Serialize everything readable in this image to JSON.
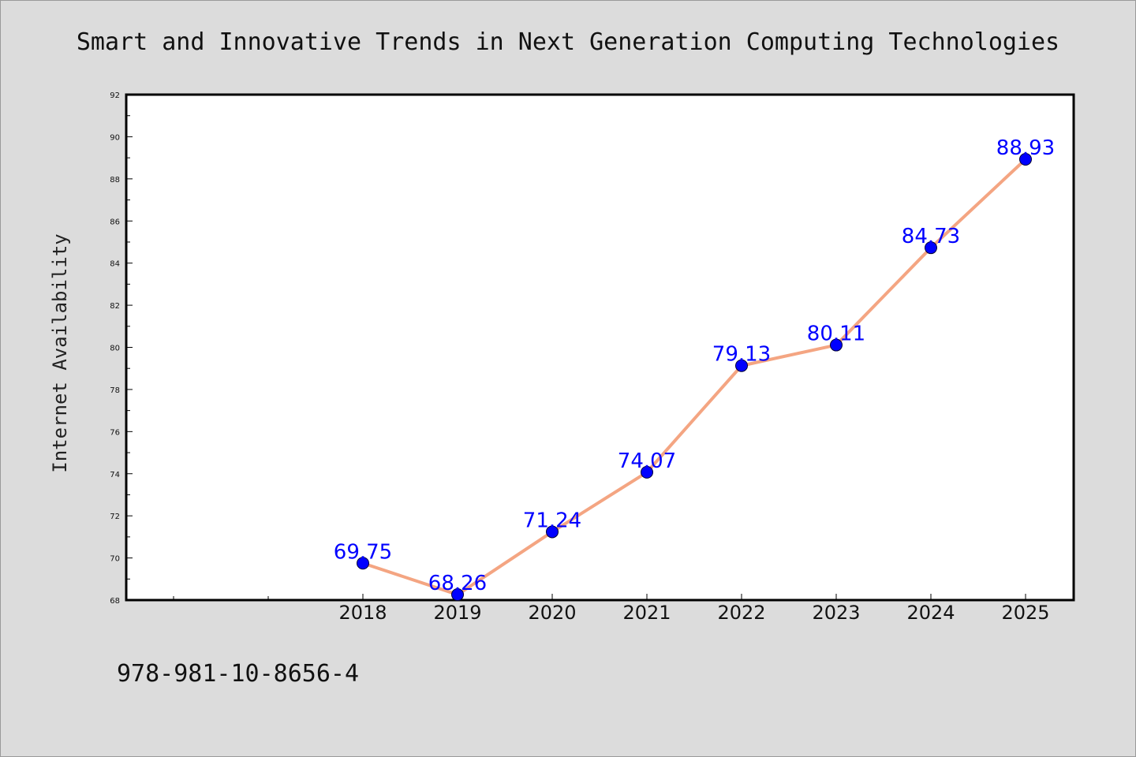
{
  "footer": {
    "isbn": "978-981-10-8656-4"
  },
  "chart_data": {
    "type": "line",
    "title": "Smart and Innovative Trends in Next Generation Computing Technologies",
    "xlabel": "",
    "ylabel": "Internet Availability",
    "categories": [
      "2018",
      "2019",
      "2020",
      "2021",
      "2022",
      "2023",
      "2024",
      "2025"
    ],
    "series": [
      {
        "values": [
          69.75,
          68.26,
          71.24,
          74.07,
          79.13,
          80.11,
          84.73,
          88.93
        ]
      }
    ],
    "data_labels": [
      "69.75",
      "68.26",
      "71.24",
      "74.07",
      "79.13",
      "80.11",
      "84.73",
      "88.93"
    ],
    "ylim": [
      68,
      92
    ],
    "yticks": [
      "68",
      "70",
      "72",
      "74",
      "76",
      "78",
      "80",
      "82",
      "84",
      "86",
      "88",
      "90",
      "92"
    ],
    "grid": false,
    "legend": "none",
    "colors": {
      "line": "#f4a582",
      "marker": "#0000ff",
      "label": "#0000ff",
      "background": "#dcdcdc",
      "plot_background": "#ffffff"
    }
  }
}
